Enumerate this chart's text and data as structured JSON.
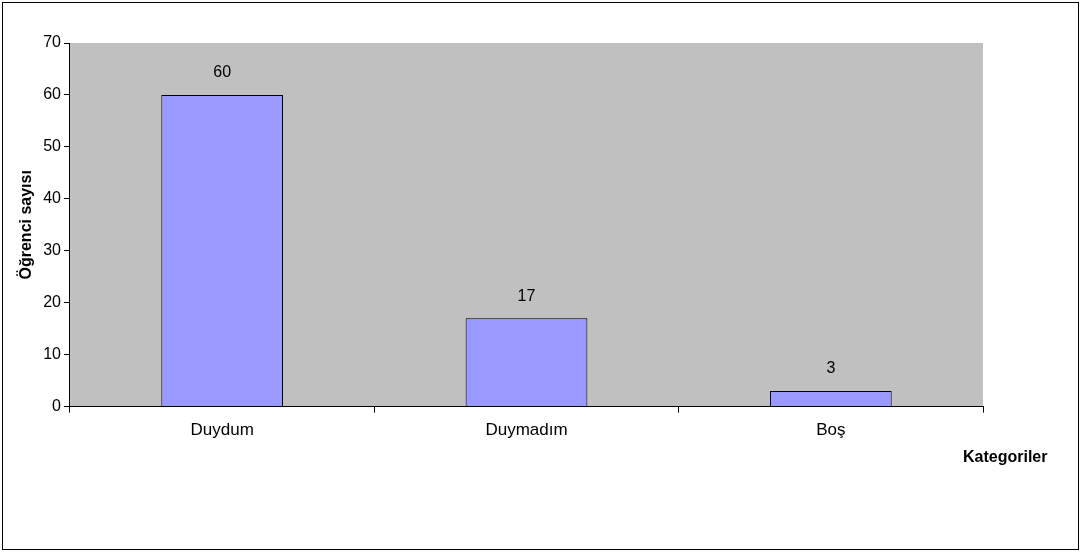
{
  "chart_data": {
    "type": "bar",
    "categories": [
      "Duydum",
      "Duymadım",
      "Boş"
    ],
    "values": [
      60,
      17,
      3
    ],
    "color": "#9999ff",
    "xlabel": "Kategoriler",
    "ylabel": "Öğrenci sayısı",
    "ylim": [
      0,
      70
    ],
    "yticks": [
      0,
      10,
      20,
      30,
      40,
      50,
      60,
      70
    ],
    "grid": false,
    "legend": false,
    "data_labels": true
  }
}
